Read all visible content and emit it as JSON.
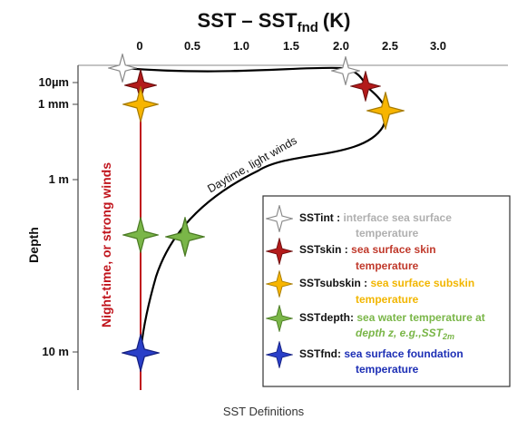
{
  "title": {
    "main": "SST – SST",
    "subscript": "fnd",
    "unit": "(K)"
  },
  "x_ticks": [
    "0",
    "0.5",
    "1.0",
    "1.5",
    "2.0",
    "2.5",
    "3.0"
  ],
  "y_axis_label": "Depth",
  "y_ticks": [
    "10µm",
    "1 mm",
    "1 m",
    "10 m"
  ],
  "curve_labels": {
    "night": "Night-time, or strong winds",
    "day": "Daytime, light winds"
  },
  "legend": [
    {
      "name": "SSTint :",
      "desc_line1": "interface sea surface",
      "desc_line2": "temperature",
      "color": "#bbbbbb",
      "star_fill": "#ffffff",
      "star_stroke": "#888888",
      "icon": "white-star-icon"
    },
    {
      "name": "SSTskin :",
      "desc_line1": "sea surface skin",
      "desc_line2": "temperature",
      "color": "#c0392b",
      "star_fill": "#b31b1b",
      "star_stroke": "#6a0d0d",
      "icon": "red-star-icon"
    },
    {
      "name": "SSTsubskin :",
      "desc_line1": "sea surface subskin",
      "desc_line2": "temperature",
      "color": "#f2b600",
      "star_fill": "#f7b500",
      "star_stroke": "#a57a00",
      "icon": "yellow-star-icon"
    },
    {
      "name": "SSTdepth:",
      "desc_line1": "sea water temperature at",
      "desc_line2_pre": "depth z, e.g.,SST",
      "desc_line2_sub": "2m",
      "color": "#7ab648",
      "star_fill": "#7ab648",
      "star_stroke": "#4a7a23",
      "icon": "green-star-icon"
    },
    {
      "name": "SSTfnd:",
      "desc_line1": "sea surface foundation",
      "desc_line2": "temperature",
      "color": "#1d2fb5",
      "star_fill": "#2a3fc8",
      "star_stroke": "#141f80",
      "icon": "blue-star-icon"
    }
  ],
  "colors": {
    "night_line": "#c0141c",
    "day_curve": "#000000",
    "night_label": "#c0141c"
  },
  "caption": "SST Definitions"
}
